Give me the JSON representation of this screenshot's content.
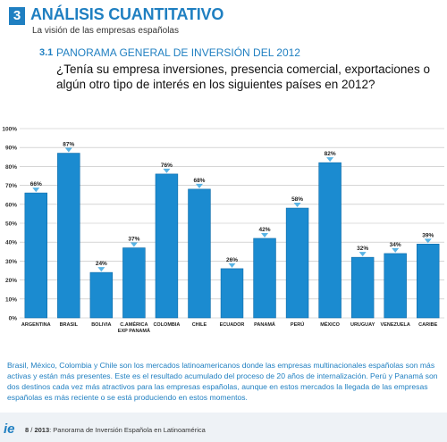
{
  "section": {
    "number": "3",
    "title": "ANÁLISIS CUANTITATIVO",
    "subtitle": "La visión de las empresas españolas"
  },
  "subsection": {
    "number": "3.1",
    "title": "PANORAMA GENERAL DE INVERSIÓN DEL 2012",
    "question": "¿Tenía su empresa inversiones, presencia comercial, exportaciones o algún otro tipo de interés en los siguientes países en 2012?"
  },
  "chart_data": {
    "type": "bar",
    "categories": [
      "ARGENTINA",
      "BRASIL",
      "BOLIVIA",
      "C.AMÉRICA EXP PANAMÁ",
      "COLOMBIA",
      "CHILE",
      "ECUADOR",
      "PANAMÁ",
      "PERÚ",
      "MÉXICO",
      "URUGUAY",
      "VENEZUELA",
      "CARIBE"
    ],
    "category_lines": [
      [
        "ARGENTINA"
      ],
      [
        "BRASIL"
      ],
      [
        "BOLIVIA"
      ],
      [
        "C.AMÉRICA",
        "EXP PANAMÁ"
      ],
      [
        "COLOMBIA"
      ],
      [
        "CHILE"
      ],
      [
        "ECUADOR"
      ],
      [
        "PANAMÁ"
      ],
      [
        "PERÚ"
      ],
      [
        "MÉXICO"
      ],
      [
        "URUGUAY"
      ],
      [
        "VENEZUELA"
      ],
      [
        "CARIBE"
      ]
    ],
    "values": [
      66,
      87,
      24,
      37,
      76,
      68,
      26,
      42,
      58,
      82,
      32,
      34,
      39
    ],
    "value_labels": [
      "66%",
      "87%",
      "24%",
      "37%",
      "76%",
      "68%",
      "26%",
      "42%",
      "58%",
      "82%",
      "32%",
      "34%",
      "39%"
    ],
    "yticks": [
      0,
      10,
      20,
      30,
      40,
      50,
      60,
      70,
      80,
      90,
      100
    ],
    "ytick_labels": [
      "0%",
      "10%",
      "20%",
      "30%",
      "40%",
      "50%",
      "60%",
      "70%",
      "80%",
      "90%",
      "100%"
    ],
    "ylim": [
      0,
      100
    ],
    "grid": true,
    "colors": {
      "bar": "#1b8bd0",
      "bar_edge": "#0d6aa8",
      "grid": "#bdbdbd",
      "marker": "#5ab4e5"
    }
  },
  "footnote": "Brasil, México, Colombia y Chile son los mercados latinoamericanos donde las empresas multinacionales españolas son más activas y están más presentes. Este es el resultado acumulado del proceso de 20 años de internalización. Perú y Panamá son dos destinos cada vez más atractivos para las empresas españolas, aunque en estos mercados la llegada de las empresas españolas es más reciente o se está produciendo en estos momentos.",
  "footer": {
    "logo": "ie",
    "page": "8",
    "year": "2013",
    "publication": ": Panorama de Inversión Española en Latinoamérica"
  }
}
